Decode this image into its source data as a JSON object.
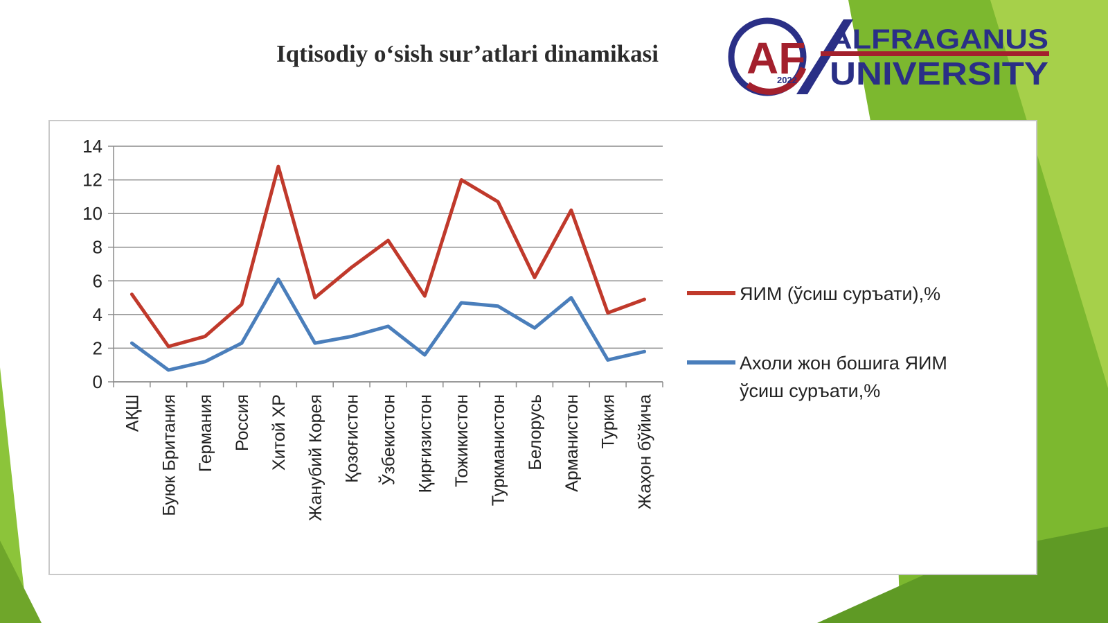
{
  "slide": {
    "title": "Iqtisodiy o‘sish sur’atlari dinamikasi"
  },
  "logo": {
    "line1": "ALFRAGANUS",
    "line2": "UNIVERSITY",
    "year": "2022",
    "primary_color": "#2a2f86",
    "accent_color": "#a3202d"
  },
  "theme": {
    "green_light": "#9ccd3c",
    "green_dark": "#6fa62a"
  },
  "chart_data": {
    "type": "line",
    "categories": [
      "АҚШ",
      "Буюк Британия",
      "Германия",
      "Россия",
      "Хитой ХР",
      "Жанубий Корея",
      "Қозоғистон",
      "Ўзбекистон",
      "Қирғизистон",
      "Тожикистон",
      "Туркманистон",
      "Белорусь",
      "Арманистон",
      "Туркия",
      "Жаҳон бўйича"
    ],
    "series": [
      {
        "name": "ЯИМ (ўсиш суръати),%",
        "color": "#c0392b",
        "values": [
          5.2,
          2.1,
          2.7,
          4.6,
          12.8,
          5.0,
          6.8,
          8.4,
          5.1,
          12.0,
          10.7,
          6.2,
          10.2,
          4.1,
          4.9
        ]
      },
      {
        "name": "Ахоли жон бошига ЯИМ ўсиш суръати,%",
        "color": "#4a7ebb",
        "values": [
          2.3,
          0.7,
          1.2,
          2.3,
          6.1,
          2.3,
          2.7,
          3.3,
          1.6,
          4.7,
          4.5,
          3.2,
          5.0,
          1.3,
          1.8
        ]
      }
    ],
    "yticks": [
      0,
      2,
      4,
      6,
      8,
      10,
      12,
      14
    ],
    "ylim": [
      0,
      14
    ],
    "grid": true,
    "legend": "right"
  }
}
